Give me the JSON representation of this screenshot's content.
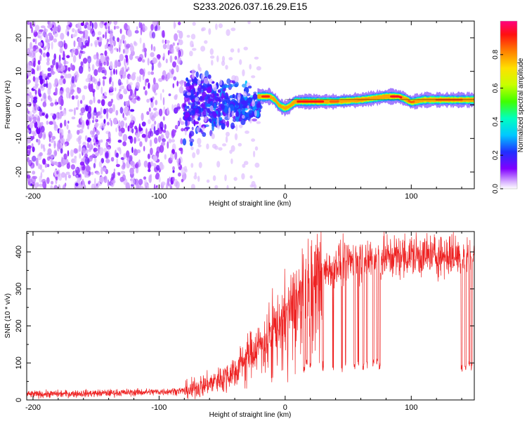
{
  "figure_title": "S233.2026.037.16.29.E15",
  "chart_data": [
    {
      "type": "heatmap",
      "title": "S233.2026.037.16.29.E15",
      "xlabel": "Height of straight line (km)",
      "ylabel": "Frequency (Hz)",
      "xlim": [
        -205,
        150
      ],
      "ylim": [
        -25,
        25
      ],
      "xticks": [
        -200,
        -100,
        0,
        100
      ],
      "yticks": [
        -20,
        -10,
        0,
        10,
        20
      ],
      "colorbar": {
        "label": "Normalized spectral amplitude",
        "range": [
          0,
          1
        ],
        "ticks": [
          0.0,
          0.2,
          0.4,
          0.6,
          0.8
        ],
        "colormap": "rainbow (white - violet - blue - cyan - green - yellow - orange - red - magenta)"
      },
      "features": {
        "noise_region_x": [
          -205,
          -80
        ],
        "transition_region_x": [
          -80,
          -20
        ],
        "signal_line": {
          "description": "Coherent narrow-band signal near 0 Hz",
          "x": [
            -20,
            -12,
            -8,
            -5,
            -3,
            0,
            3,
            8,
            20,
            40,
            60,
            80,
            90,
            95,
            100,
            110,
            130,
            150
          ],
          "frequency": [
            2.5,
            2.5,
            1.5,
            0,
            -0.5,
            -1,
            -0.5,
            1,
            1,
            1,
            1.5,
            2.5,
            2.5,
            1.8,
            0.8,
            1.5,
            1.5,
            1.5
          ]
        }
      }
    },
    {
      "type": "line",
      "xlabel": "Height of straight line (km)",
      "ylabel": "SNR (10 * v/v)",
      "xlim": [
        -205,
        150
      ],
      "ylim": [
        0,
        455
      ],
      "xticks": [
        -200,
        -100,
        0,
        100
      ],
      "yticks": [
        0,
        100,
        200,
        300,
        400
      ],
      "series": [
        {
          "name": "SNR",
          "color": "#ee2222",
          "envelope_x": [
            -205,
            -150,
            -100,
            -80,
            -60,
            -40,
            -30,
            -20,
            -10,
            0,
            10,
            20,
            30,
            40,
            60,
            80,
            100,
            120,
            150
          ],
          "envelope_mean": [
            15,
            18,
            22,
            25,
            45,
            80,
            120,
            150,
            190,
            230,
            270,
            310,
            345,
            370,
            380,
            385,
            390,
            390,
            390
          ],
          "dropouts": [
            {
              "x": 15,
              "min": 70
            },
            {
              "x": 17,
              "min": 90
            },
            {
              "x": 20,
              "min": 80
            },
            {
              "x": 30,
              "min": 75
            },
            {
              "x": 38,
              "min": 80
            },
            {
              "x": 45,
              "min": 75
            },
            {
              "x": 48,
              "min": 85
            },
            {
              "x": 55,
              "min": 80
            },
            {
              "x": 58,
              "min": 90
            },
            {
              "x": 62,
              "min": 80
            },
            {
              "x": 65,
              "min": 85
            },
            {
              "x": 70,
              "min": 90
            },
            {
              "x": 73,
              "min": 95
            },
            {
              "x": 75,
              "min": 80
            },
            {
              "x": 140,
              "min": 75
            },
            {
              "x": 143,
              "min": 80
            },
            {
              "x": 146,
              "min": 85
            },
            {
              "x": 148,
              "min": 80
            }
          ]
        }
      ]
    }
  ]
}
